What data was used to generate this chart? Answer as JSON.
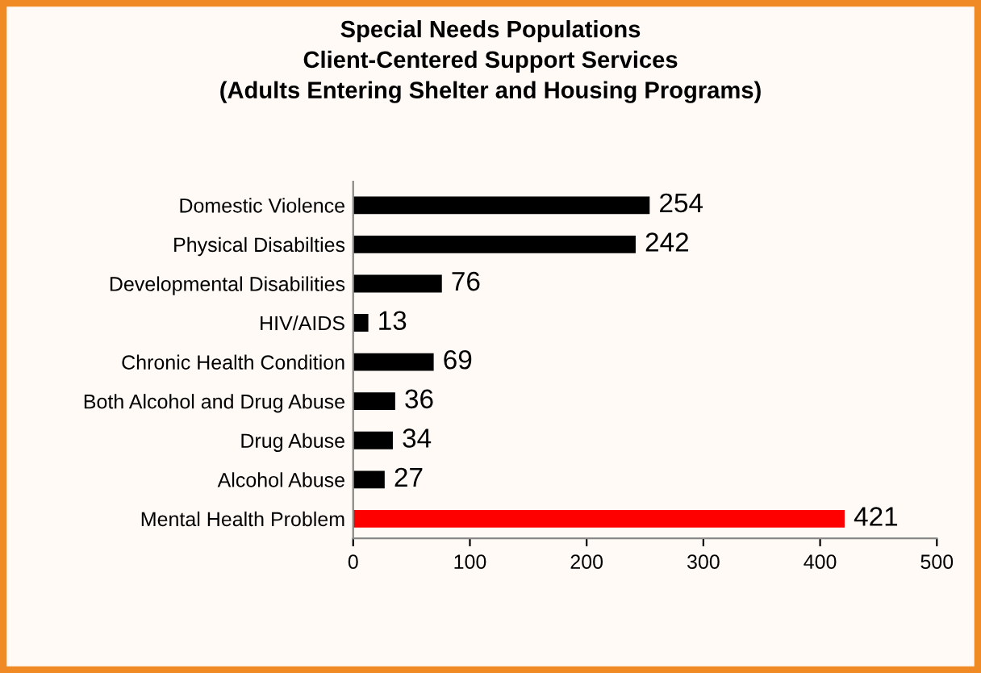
{
  "chart_data": {
    "type": "bar",
    "orientation": "horizontal",
    "title": "Special Needs Populations\nClient-Centered Support Services\n(Adults Entering Shelter and Housing Programs)",
    "categories": [
      "Domestic Violence",
      "Physical Disabilties",
      "Developmental Disabilities",
      "HIV/AIDS",
      "Chronic Health Condition",
      "Both Alcohol and Drug Abuse",
      "Drug Abuse",
      "Alcohol Abuse",
      "Mental Health Problem"
    ],
    "values": [
      254,
      242,
      76,
      13,
      69,
      36,
      34,
      27,
      421
    ],
    "colors": [
      "#000000",
      "#000000",
      "#000000",
      "#000000",
      "#000000",
      "#000000",
      "#000000",
      "#000000",
      "#ff0000"
    ],
    "xlim": [
      0,
      500
    ],
    "xticks": [
      0,
      100,
      200,
      300,
      400,
      500
    ],
    "data_labels": true,
    "grid": false,
    "legend": false
  }
}
